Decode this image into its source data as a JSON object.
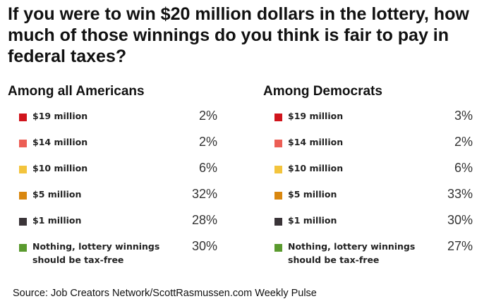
{
  "title": "If you were to win $20 million dollars in the lottery, how much of those winnings do you think is fair to pay in federal taxes?",
  "source": "Source: Job Creators Network/ScottRasmussen.com Weekly Pulse",
  "chart_data": [
    {
      "type": "table",
      "title": "Among all Americans",
      "categories": [
        "$19 million",
        "$14 million",
        "$10 million",
        "$5 million",
        "$1 million",
        "Nothing, lottery winnings should be tax-free"
      ],
      "values": [
        2,
        2,
        6,
        32,
        28,
        30
      ],
      "value_labels": [
        "2%",
        "2%",
        "6%",
        "32%",
        "28%",
        "30%"
      ],
      "colors": [
        "#d0141c",
        "#ec5e55",
        "#f3c43d",
        "#d9870f",
        "#3a3438",
        "#5a9a2e"
      ]
    },
    {
      "type": "table",
      "title": "Among Democrats",
      "categories": [
        "$19 million",
        "$14 million",
        "$10 million",
        "$5 million",
        "$1 million",
        "Nothing, lottery winnings should be tax-free"
      ],
      "values": [
        3,
        2,
        6,
        33,
        30,
        27
      ],
      "value_labels": [
        "3%",
        "2%",
        "6%",
        "33%",
        "30%",
        "27%"
      ],
      "colors": [
        "#d0141c",
        "#ec5e55",
        "#f3c43d",
        "#d9870f",
        "#3a3438",
        "#5a9a2e"
      ]
    }
  ]
}
